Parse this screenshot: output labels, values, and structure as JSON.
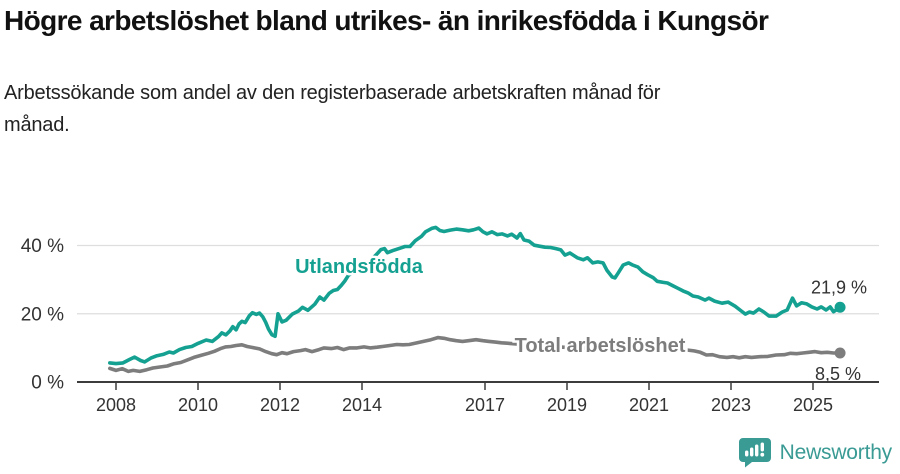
{
  "header": {
    "title": "Högre arbetslöshet bland utrikes- än inrikesfödda i Kungsör",
    "subtitle": "Arbetssökande som andel av den registerbaserade arbetskraften månad för månad."
  },
  "footer": {
    "brand": "Newsworthy"
  },
  "colors": {
    "foreign_born_line": "#15a191",
    "total_line": "#7d7d7d",
    "grid": "#dedede",
    "axis": "#3c3c3c",
    "tick_text": "#333333",
    "annotation_text": "#333333",
    "brand_teal": "#3a9a94"
  },
  "chart_data": {
    "type": "line",
    "title": "Högre arbetslöshet bland utrikes- än inrikesfödda i Kungsör",
    "subtitle": "Arbetssökande som andel av den registerbaserade arbetskraften månad för månad.",
    "xlabel": "",
    "ylabel": "",
    "xlim": [
      2007.8,
      2025.9
    ],
    "ylim": [
      0,
      48
    ],
    "grid": "horizontal",
    "legend_position": "inline-labels",
    "x_axis": {
      "unit": "year",
      "ticks": [
        "2008",
        "2010",
        "2012",
        "2014",
        "2017",
        "2019",
        "2021",
        "2023",
        "2025"
      ]
    },
    "y_axis": {
      "ticks": [
        {
          "value": 0,
          "label": "0 %"
        },
        {
          "value": 20,
          "label": "20 %"
        },
        {
          "value": 40,
          "label": "40 %"
        }
      ]
    },
    "series": [
      {
        "name": "Utlandsfödda",
        "color": "#15a191",
        "end_label": "21,9 %",
        "end_value": 21.9,
        "points": [
          [
            2007.85,
            5.6
          ],
          [
            2008.0,
            5.4
          ],
          [
            2008.17,
            5.6
          ],
          [
            2008.33,
            6.6
          ],
          [
            2008.45,
            7.3
          ],
          [
            2008.6,
            6.3
          ],
          [
            2008.7,
            5.9
          ],
          [
            2008.85,
            7.0
          ],
          [
            2009.0,
            7.7
          ],
          [
            2009.15,
            8.1
          ],
          [
            2009.3,
            8.8
          ],
          [
            2009.4,
            8.5
          ],
          [
            2009.55,
            9.5
          ],
          [
            2009.7,
            10.1
          ],
          [
            2009.85,
            10.4
          ],
          [
            2010.0,
            11.3
          ],
          [
            2010.2,
            12.3
          ],
          [
            2010.35,
            11.9
          ],
          [
            2010.5,
            13.3
          ],
          [
            2010.58,
            14.4
          ],
          [
            2010.68,
            13.8
          ],
          [
            2010.78,
            15.0
          ],
          [
            2010.85,
            16.2
          ],
          [
            2010.93,
            15.3
          ],
          [
            2011.0,
            17.0
          ],
          [
            2011.07,
            17.8
          ],
          [
            2011.15,
            17.4
          ],
          [
            2011.25,
            19.4
          ],
          [
            2011.33,
            20.3
          ],
          [
            2011.42,
            19.8
          ],
          [
            2011.5,
            20.2
          ],
          [
            2011.58,
            19.1
          ],
          [
            2011.65,
            17.5
          ],
          [
            2011.72,
            15.5
          ],
          [
            2011.8,
            13.9
          ],
          [
            2011.88,
            13.4
          ],
          [
            2011.95,
            20.0
          ],
          [
            2012.05,
            17.6
          ],
          [
            2012.15,
            18.1
          ],
          [
            2012.3,
            19.9
          ],
          [
            2012.45,
            20.8
          ],
          [
            2012.55,
            21.9
          ],
          [
            2012.68,
            21.0
          ],
          [
            2012.85,
            22.8
          ],
          [
            2012.97,
            24.9
          ],
          [
            2013.07,
            24.0
          ],
          [
            2013.2,
            26.0
          ],
          [
            2013.3,
            26.8
          ],
          [
            2013.4,
            27.1
          ],
          [
            2013.5,
            28.4
          ],
          [
            2013.58,
            29.6
          ],
          [
            2013.67,
            31.3
          ],
          [
            2013.78,
            32.0
          ],
          [
            2013.9,
            33.4
          ],
          [
            2014.0,
            34.1
          ],
          [
            2014.2,
            35.6
          ],
          [
            2014.35,
            37.3
          ],
          [
            2014.46,
            38.8
          ],
          [
            2014.55,
            39.1
          ],
          [
            2014.62,
            37.9
          ],
          [
            2014.75,
            38.5
          ],
          [
            2014.93,
            39.2
          ],
          [
            2015.05,
            39.7
          ],
          [
            2015.17,
            39.7
          ],
          [
            2015.3,
            41.4
          ],
          [
            2015.45,
            42.7
          ],
          [
            2015.55,
            44.0
          ],
          [
            2015.7,
            45.0
          ],
          [
            2015.8,
            45.3
          ],
          [
            2015.9,
            44.4
          ],
          [
            2016.0,
            44.1
          ],
          [
            2016.15,
            44.5
          ],
          [
            2016.3,
            44.8
          ],
          [
            2016.45,
            44.6
          ],
          [
            2016.6,
            44.3
          ],
          [
            2016.72,
            44.6
          ],
          [
            2016.85,
            45.1
          ],
          [
            2016.95,
            44.0
          ],
          [
            2017.05,
            43.4
          ],
          [
            2017.17,
            44.0
          ],
          [
            2017.3,
            43.2
          ],
          [
            2017.42,
            43.4
          ],
          [
            2017.55,
            42.8
          ],
          [
            2017.65,
            43.3
          ],
          [
            2017.78,
            42.2
          ],
          [
            2017.86,
            43.5
          ],
          [
            2017.95,
            41.6
          ],
          [
            2018.07,
            41.3
          ],
          [
            2018.2,
            40.1
          ],
          [
            2018.33,
            39.8
          ],
          [
            2018.46,
            39.5
          ],
          [
            2018.6,
            39.4
          ],
          [
            2018.73,
            39.1
          ],
          [
            2018.85,
            38.7
          ],
          [
            2018.95,
            37.2
          ],
          [
            2019.07,
            37.8
          ],
          [
            2019.25,
            36.4
          ],
          [
            2019.4,
            35.8
          ],
          [
            2019.5,
            36.4
          ],
          [
            2019.63,
            34.9
          ],
          [
            2019.75,
            35.2
          ],
          [
            2019.88,
            34.9
          ],
          [
            2019.97,
            32.8
          ],
          [
            2020.1,
            30.8
          ],
          [
            2020.17,
            30.5
          ],
          [
            2020.25,
            32.0
          ],
          [
            2020.37,
            34.3
          ],
          [
            2020.5,
            34.9
          ],
          [
            2020.6,
            34.3
          ],
          [
            2020.73,
            33.7
          ],
          [
            2020.85,
            32.3
          ],
          [
            2020.97,
            31.4
          ],
          [
            2021.1,
            30.6
          ],
          [
            2021.2,
            29.5
          ],
          [
            2021.35,
            29.2
          ],
          [
            2021.45,
            29.0
          ],
          [
            2021.6,
            28.1
          ],
          [
            2021.7,
            27.5
          ],
          [
            2021.83,
            26.7
          ],
          [
            2021.95,
            26.1
          ],
          [
            2022.07,
            25.2
          ],
          [
            2022.2,
            24.9
          ],
          [
            2022.37,
            24.0
          ],
          [
            2022.46,
            24.6
          ],
          [
            2022.6,
            23.7
          ],
          [
            2022.78,
            23.1
          ],
          [
            2022.93,
            23.4
          ],
          [
            2023.1,
            22.2
          ],
          [
            2023.25,
            20.8
          ],
          [
            2023.35,
            19.9
          ],
          [
            2023.45,
            20.5
          ],
          [
            2023.55,
            20.2
          ],
          [
            2023.68,
            21.4
          ],
          [
            2023.8,
            20.5
          ],
          [
            2023.93,
            19.3
          ],
          [
            2024.1,
            19.3
          ],
          [
            2024.25,
            20.5
          ],
          [
            2024.37,
            21.1
          ],
          [
            2024.5,
            24.6
          ],
          [
            2024.6,
            22.3
          ],
          [
            2024.72,
            23.2
          ],
          [
            2024.85,
            22.9
          ],
          [
            2024.97,
            22.0
          ],
          [
            2025.1,
            21.4
          ],
          [
            2025.2,
            22.0
          ],
          [
            2025.32,
            21.1
          ],
          [
            2025.42,
            22.0
          ],
          [
            2025.5,
            20.6
          ],
          [
            2025.6,
            21.4
          ],
          [
            2025.66,
            21.9
          ]
        ]
      },
      {
        "name": "Total arbetslöshet",
        "color": "#7d7d7d",
        "end_label": "8,5 %",
        "end_value": 8.5,
        "points": [
          [
            2007.85,
            4.0
          ],
          [
            2008.0,
            3.4
          ],
          [
            2008.15,
            3.9
          ],
          [
            2008.3,
            3.1
          ],
          [
            2008.42,
            3.4
          ],
          [
            2008.58,
            3.1
          ],
          [
            2008.75,
            3.6
          ],
          [
            2008.9,
            4.1
          ],
          [
            2009.07,
            4.4
          ],
          [
            2009.25,
            4.7
          ],
          [
            2009.4,
            5.3
          ],
          [
            2009.58,
            5.7
          ],
          [
            2009.75,
            6.5
          ],
          [
            2009.9,
            7.2
          ],
          [
            2010.07,
            7.8
          ],
          [
            2010.25,
            8.4
          ],
          [
            2010.4,
            9.0
          ],
          [
            2010.55,
            9.8
          ],
          [
            2010.67,
            10.3
          ],
          [
            2010.8,
            10.4
          ],
          [
            2010.93,
            10.7
          ],
          [
            2011.07,
            10.9
          ],
          [
            2011.2,
            10.4
          ],
          [
            2011.33,
            10.1
          ],
          [
            2011.5,
            9.7
          ],
          [
            2011.65,
            8.9
          ],
          [
            2011.8,
            8.3
          ],
          [
            2011.92,
            8.0
          ],
          [
            2012.05,
            8.6
          ],
          [
            2012.17,
            8.3
          ],
          [
            2012.33,
            8.9
          ],
          [
            2012.5,
            9.2
          ],
          [
            2012.62,
            9.5
          ],
          [
            2012.78,
            8.9
          ],
          [
            2012.95,
            9.5
          ],
          [
            2013.07,
            10.0
          ],
          [
            2013.25,
            9.8
          ],
          [
            2013.4,
            10.1
          ],
          [
            2013.55,
            9.5
          ],
          [
            2013.7,
            10.0
          ],
          [
            2013.88,
            10.0
          ],
          [
            2014.05,
            10.3
          ],
          [
            2014.2,
            10.0
          ],
          [
            2014.37,
            10.2
          ],
          [
            2014.5,
            10.4
          ],
          [
            2014.68,
            10.7
          ],
          [
            2014.85,
            11.0
          ],
          [
            2015.0,
            10.9
          ],
          [
            2015.15,
            11.0
          ],
          [
            2015.35,
            11.5
          ],
          [
            2015.5,
            11.9
          ],
          [
            2015.68,
            12.4
          ],
          [
            2015.85,
            13.0
          ],
          [
            2016.0,
            12.8
          ],
          [
            2016.15,
            12.4
          ],
          [
            2016.3,
            12.1
          ],
          [
            2016.45,
            11.9
          ],
          [
            2016.6,
            12.1
          ],
          [
            2016.78,
            12.4
          ],
          [
            2016.95,
            12.1
          ],
          [
            2017.1,
            11.9
          ],
          [
            2017.25,
            11.7
          ],
          [
            2017.4,
            11.5
          ],
          [
            2017.6,
            11.3
          ],
          [
            2017.8,
            11.1
          ],
          [
            2018.0,
            11.0
          ],
          [
            2018.3,
            10.7
          ],
          [
            2018.6,
            10.4
          ],
          [
            2018.9,
            10.2
          ],
          [
            2019.2,
            10.0
          ],
          [
            2019.5,
            9.9
          ],
          [
            2019.8,
            10.0
          ],
          [
            2020.1,
            10.6
          ],
          [
            2020.4,
            11.0
          ],
          [
            2020.7,
            10.8
          ],
          [
            2021.0,
            10.4
          ],
          [
            2021.3,
            10.0
          ],
          [
            2021.6,
            9.7
          ],
          [
            2021.9,
            9.4
          ],
          [
            2022.1,
            9.1
          ],
          [
            2022.25,
            8.7
          ],
          [
            2022.4,
            7.9
          ],
          [
            2022.55,
            8.0
          ],
          [
            2022.72,
            7.4
          ],
          [
            2022.9,
            7.2
          ],
          [
            2023.05,
            7.4
          ],
          [
            2023.2,
            7.1
          ],
          [
            2023.35,
            7.4
          ],
          [
            2023.5,
            7.2
          ],
          [
            2023.7,
            7.4
          ],
          [
            2023.9,
            7.5
          ],
          [
            2024.1,
            7.9
          ],
          [
            2024.3,
            8.0
          ],
          [
            2024.45,
            8.4
          ],
          [
            2024.6,
            8.3
          ],
          [
            2024.75,
            8.5
          ],
          [
            2024.9,
            8.7
          ],
          [
            2025.05,
            8.9
          ],
          [
            2025.2,
            8.6
          ],
          [
            2025.35,
            8.7
          ],
          [
            2025.5,
            8.5
          ],
          [
            2025.66,
            8.5
          ]
        ]
      }
    ]
  }
}
